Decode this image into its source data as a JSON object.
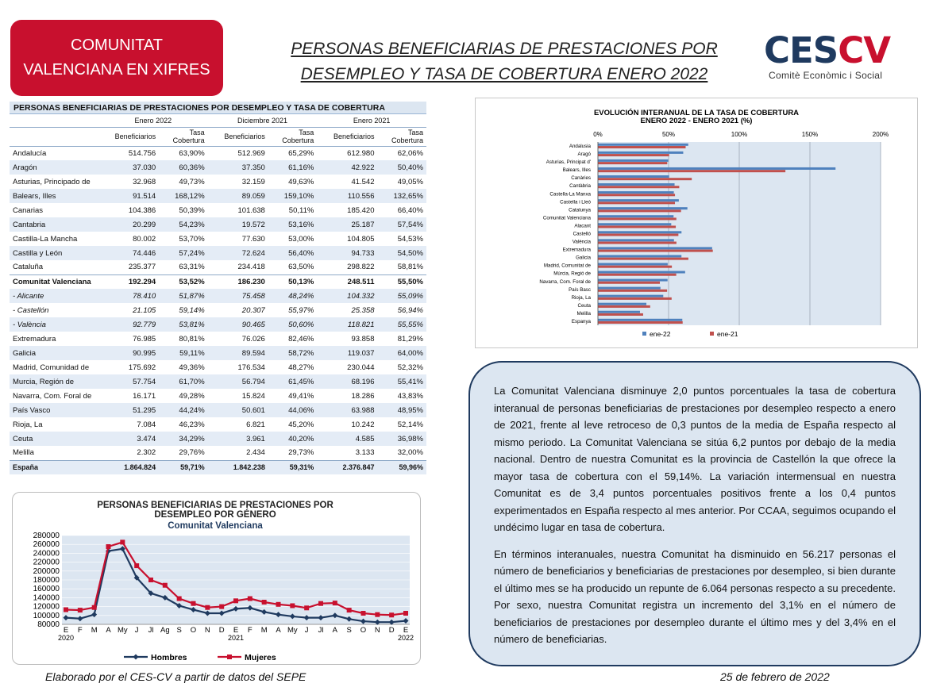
{
  "badge": {
    "line1": "COMUNITAT",
    "line2": "VALENCIANA EN XIFRES"
  },
  "title": {
    "line1": "PERSONAS BENEFICIARIAS DE PRESTACIONES POR",
    "line2": "DESEMPLEO Y TASA DE COBERTURA ENERO 2022"
  },
  "logo": {
    "ces": "CES",
    "cv": "CV",
    "subtitle": "Comitè Econòmic i Social",
    "colors": {
      "ces": "#1f3a5f",
      "cv": "#c8102e"
    }
  },
  "table": {
    "title": "PERSONAS BENEFICIARIAS DE PRESTACIONES POR DESEMPLEO Y TASA DE COBERTURA",
    "periods": [
      "Enero 2022",
      "Diciembre 2021",
      "Enero 2021"
    ],
    "col_benef": "Beneficiarios",
    "col_tasa_1": "Tasa",
    "col_tasa_2": "Cobertura",
    "rows": [
      {
        "name": "Andalucía",
        "v": [
          "514.756",
          "63,90%",
          "512.969",
          "65,29%",
          "612.980",
          "62,06%"
        ]
      },
      {
        "name": "Aragón",
        "v": [
          "37.030",
          "60,36%",
          "37.350",
          "61,16%",
          "42.922",
          "50,40%"
        ]
      },
      {
        "name": "Asturias, Principado de",
        "v": [
          "32.968",
          "49,73%",
          "32.159",
          "49,63%",
          "41.542",
          "49,05%"
        ]
      },
      {
        "name": "Balears, Illes",
        "v": [
          "91.514",
          "168,12%",
          "89.059",
          "159,10%",
          "110.556",
          "132,65%"
        ]
      },
      {
        "name": "Canarias",
        "v": [
          "104.386",
          "50,39%",
          "101.638",
          "50,11%",
          "185.420",
          "66,40%"
        ]
      },
      {
        "name": "Cantabria",
        "v": [
          "20.299",
          "54,23%",
          "19.572",
          "53,16%",
          "25.187",
          "57,54%"
        ]
      },
      {
        "name": "Castilla-La Mancha",
        "v": [
          "80.002",
          "53,70%",
          "77.630",
          "53,00%",
          "104.805",
          "54,53%"
        ]
      },
      {
        "name": "Castilla y León",
        "v": [
          "74.446",
          "57,24%",
          "72.624",
          "56,40%",
          "94.733",
          "54,50%"
        ]
      },
      {
        "name": "Cataluña",
        "v": [
          "235.377",
          "63,31%",
          "234.418",
          "63,50%",
          "298.822",
          "58,81%"
        ]
      },
      {
        "name": "Comunitat Valenciana",
        "v": [
          "192.294",
          "53,52%",
          "186.230",
          "50,13%",
          "248.511",
          "55,50%"
        ]
      },
      {
        "name": " -  Alicante",
        "v": [
          "78.410",
          "51,87%",
          "75.458",
          "48,24%",
          "104.332",
          "55,09%"
        ]
      },
      {
        "name": "- Castellón",
        "v": [
          "21.105",
          "59,14%",
          "20.307",
          "55,97%",
          "25.358",
          "56,94%"
        ]
      },
      {
        "name": "- València",
        "v": [
          "92.779",
          "53,81%",
          "90.465",
          "50,60%",
          "118.821",
          "55,55%"
        ]
      },
      {
        "name": "Extremadura",
        "v": [
          "76.985",
          "80,81%",
          "76.026",
          "82,46%",
          "93.858",
          "81,29%"
        ]
      },
      {
        "name": "Galicia",
        "v": [
          "90.995",
          "59,11%",
          "89.594",
          "58,72%",
          "119.037",
          "64,00%"
        ]
      },
      {
        "name": "Madrid, Comunidad de",
        "v": [
          "175.692",
          "49,36%",
          "176.534",
          "48,27%",
          "230.044",
          "52,32%"
        ]
      },
      {
        "name": "Murcia, Región de",
        "v": [
          "57.754",
          "61,70%",
          "56.794",
          "61,45%",
          "68.196",
          "55,41%"
        ]
      },
      {
        "name": "Navarra, Com. Foral de",
        "v": [
          "16.171",
          "49,28%",
          "15.824",
          "49,41%",
          "18.286",
          "43,83%"
        ]
      },
      {
        "name": "País Vasco",
        "v": [
          "51.295",
          "44,24%",
          "50.601",
          "44,06%",
          "63.988",
          "48,95%"
        ]
      },
      {
        "name": "Rioja, La",
        "v": [
          "7.084",
          "46,23%",
          "6.821",
          "45,20%",
          "10.242",
          "52,14%"
        ]
      },
      {
        "name": "Ceuta",
        "v": [
          "3.474",
          "34,29%",
          "3.961",
          "40,20%",
          "4.585",
          "36,98%"
        ]
      },
      {
        "name": "Melilla",
        "v": [
          "2.302",
          "29,76%",
          "2.434",
          "29,73%",
          "3.133",
          "32,00%"
        ]
      },
      {
        "name": "España",
        "v": [
          "1.864.824",
          "59,71%",
          "1.842.238",
          "59,31%",
          "2.376.847",
          "59,96%"
        ]
      }
    ]
  },
  "text": {
    "p1": "La Comunitat Valenciana disminuye 2,0 puntos porcentuales la tasa de cobertura interanual de personas beneficiarias de prestaciones por desempleo respecto a enero de 2021, frente al leve retroceso de 0,3 puntos de la media de España respecto al mismo periodo. La Comunitat Valenciana se sitúa 6,2 puntos por debajo de la media nacional. Dentro de nuestra Comunitat es la provincia de Castellón la que ofrece la mayor tasa de cobertura con el 59,14%. La variación intermensual en nuestra Comunitat es de 3,4 puntos porcentuales positivos frente a los 0,4 puntos experimentados en España respecto al mes anterior. Por CCAA, seguimos ocupando el undécimo lugar en tasa de cobertura.",
    "p2": "En términos interanuales, nuestra Comunitat ha disminuido en 56.217 personas el número de beneficiarios y beneficiarias de prestaciones por desempleo, si bien durante el último mes se ha producido un repunte de 6.064 personas respecto a su precedente. Por sexo, nuestra Comunitat registra un incremento del 3,1% en el número de beneficiarios de prestaciones por desempleo durante el último mes y del 3,4% en el número de beneficiarias."
  },
  "footer": {
    "left": "Elaborado por el CES-CV a partir de datos del SEPE",
    "right": "25 de febrero de 2022"
  },
  "chart_data": [
    {
      "type": "bar",
      "orientation": "horizontal",
      "title": "EVOLUCIÓN INTERANUAL DE LA TASA DE COBERTURA",
      "subtitle": "ENERO 2022 - ENERO 2021 (%)",
      "x_ticks": [
        "0%",
        "50%",
        "100%",
        "150%",
        "200%"
      ],
      "xlim": [
        0,
        200
      ],
      "grid": true,
      "legend_position": "bottom",
      "categories": [
        "Andalusia",
        "Aragó",
        "Asturias, Principat d'",
        "Balears, Illes",
        "Canàries",
        "Cantàbria",
        "Castella-La Manxa",
        "Castella i Lleó",
        "Catalunya",
        "Comunitat Valenciana",
        "Alacant",
        "Castelló",
        "València",
        "Extremadura",
        "Galicia",
        "Madrid, Comunitat de",
        "Múrcia, Regió de",
        "Navarra, Com. Foral de",
        "País Basc",
        "Rioja, La",
        "Ceuta",
        "Melilla",
        "Espanya"
      ],
      "series": [
        {
          "name": "ene-22",
          "color": "#4f81bd",
          "values": [
            63.9,
            60.36,
            49.73,
            168.12,
            50.39,
            54.23,
            53.7,
            57.24,
            63.31,
            53.52,
            51.87,
            59.14,
            53.81,
            80.81,
            59.11,
            49.36,
            61.7,
            49.28,
            44.24,
            46.23,
            34.29,
            29.76,
            59.71
          ]
        },
        {
          "name": "ene-21",
          "color": "#c0504d",
          "values": [
            62.06,
            50.4,
            49.05,
            132.65,
            66.4,
            57.54,
            54.53,
            54.5,
            58.81,
            55.5,
            55.09,
            56.94,
            55.55,
            81.29,
            64.0,
            52.32,
            55.41,
            43.83,
            48.95,
            52.14,
            36.98,
            32.0,
            59.96
          ]
        }
      ]
    },
    {
      "type": "line",
      "title": "PERSONAS BENEFICIARIAS DE PRESTACIONES POR",
      "title2": "DESEMPLEO POR GÉNERO",
      "subtitle": "Comunitat Valenciana",
      "x": [
        "E",
        "F",
        "M",
        "A",
        "My",
        "J",
        "Jl",
        "Ag",
        "S",
        "O",
        "N",
        "D",
        "E",
        "F",
        "M",
        "A",
        "My",
        "J",
        "Jl",
        "A",
        "S",
        "O",
        "N",
        "D",
        "E"
      ],
      "year_labels": [
        "2020",
        "2021",
        "2022"
      ],
      "ylim": [
        80000,
        280000
      ],
      "y_ticks": [
        "80000",
        "100000",
        "120000",
        "140000",
        "160000",
        "180000",
        "200000",
        "220000",
        "240000",
        "260000",
        "280000"
      ],
      "legend_position": "bottom",
      "series": [
        {
          "name": "Hombres",
          "color": "#1f3a5f",
          "values": [
            95000,
            93000,
            102000,
            245000,
            250000,
            185000,
            150000,
            140000,
            122000,
            113000,
            105000,
            105000,
            115000,
            117000,
            108000,
            102000,
            98000,
            95000,
            95000,
            100000,
            92000,
            87000,
            85000,
            85000,
            88000
          ]
        },
        {
          "name": "Mujeres",
          "color": "#c8102e",
          "values": [
            113000,
            112000,
            118000,
            255000,
            265000,
            212000,
            180000,
            168000,
            138000,
            127000,
            118000,
            120000,
            133000,
            138000,
            130000,
            125000,
            122000,
            117000,
            127000,
            128000,
            112000,
            105000,
            102000,
            101000,
            105000
          ]
        }
      ]
    }
  ]
}
